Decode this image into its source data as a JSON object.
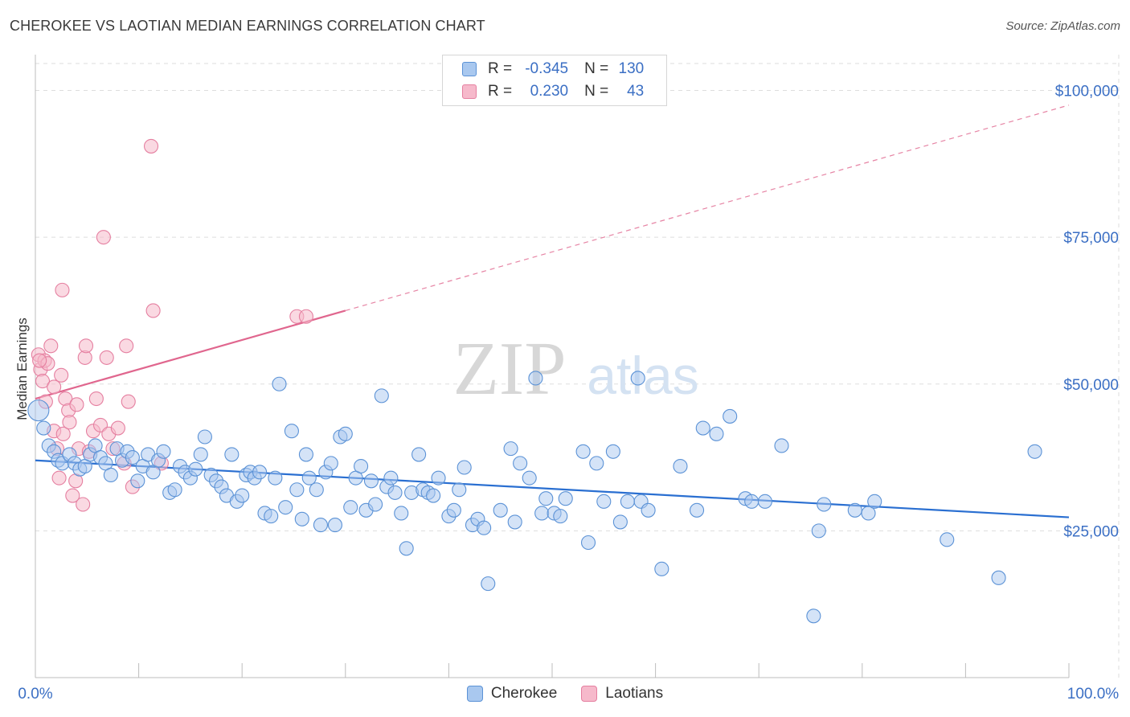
{
  "header": {
    "title": "CHEROKEE VS LAOTIAN MEDIAN EARNINGS CORRELATION CHART",
    "source": "Source: ZipAtlas.com"
  },
  "watermark": {
    "zip": "ZIP",
    "atlas": "atlas"
  },
  "legend": {
    "cherokee": {
      "r_label": "R =",
      "r_value": "-0.345",
      "n_label": "N =",
      "n_value": "130"
    },
    "laotians": {
      "r_label": "R =",
      "r_value": "0.230",
      "n_label": "N =",
      "n_value": "43"
    }
  },
  "bottom_legend": {
    "cherokee": "Cherokee",
    "laotians": "Laotians"
  },
  "colors": {
    "cherokee_fill": "#a9c8ef",
    "cherokee_stroke": "#5b92d6",
    "cherokee_line": "#2a6fd1",
    "laotians_fill": "#f6b9cb",
    "laotians_stroke": "#e57fa0",
    "laotians_line": "#e0668e",
    "tick_label": "#3b6fc4",
    "grid": "#dddddd"
  },
  "chart_data": {
    "type": "scatter",
    "title": "CHEROKEE VS LAOTIAN MEDIAN EARNINGS CORRELATION CHART",
    "xlabel": "",
    "ylabel": "Median Earnings",
    "xlim": [
      0,
      100
    ],
    "ylim": [
      0,
      105000
    ],
    "x_tick_labels": [
      "0.0%",
      "100.0%"
    ],
    "y_ticks": [
      25000,
      50000,
      75000,
      100000
    ],
    "y_tick_labels": [
      "$25,000",
      "$50,000",
      "$75,000",
      "$100,000"
    ],
    "grid": true,
    "legend_placement": "top-center",
    "series": [
      {
        "name": "Cherokee",
        "trend": {
          "x": [
            0,
            100
          ],
          "y": [
            37000,
            27300
          ]
        },
        "points": [
          [
            0.3,
            45500
          ],
          [
            0.8,
            42500
          ],
          [
            1.3,
            39500
          ],
          [
            1.8,
            38500
          ],
          [
            2.2,
            37000
          ],
          [
            2.6,
            36500
          ],
          [
            3.3,
            38000
          ],
          [
            3.8,
            36500
          ],
          [
            4.3,
            35500
          ],
          [
            4.8,
            36000
          ],
          [
            5.3,
            38000
          ],
          [
            5.8,
            39500
          ],
          [
            6.3,
            37500
          ],
          [
            6.8,
            36500
          ],
          [
            7.3,
            34500
          ],
          [
            7.9,
            39000
          ],
          [
            8.4,
            37000
          ],
          [
            8.9,
            38500
          ],
          [
            9.4,
            37500
          ],
          [
            9.9,
            33500
          ],
          [
            10.4,
            36000
          ],
          [
            10.9,
            38000
          ],
          [
            11.4,
            35000
          ],
          [
            11.9,
            37000
          ],
          [
            12.4,
            38500
          ],
          [
            13.0,
            31500
          ],
          [
            13.5,
            32000
          ],
          [
            14.0,
            36000
          ],
          [
            14.5,
            35000
          ],
          [
            15.0,
            34000
          ],
          [
            15.5,
            35500
          ],
          [
            16.0,
            38000
          ],
          [
            16.4,
            41000
          ],
          [
            17.0,
            34500
          ],
          [
            17.5,
            33500
          ],
          [
            18.0,
            32500
          ],
          [
            18.5,
            31000
          ],
          [
            19.0,
            38000
          ],
          [
            19.5,
            30000
          ],
          [
            20.0,
            31000
          ],
          [
            20.4,
            34500
          ],
          [
            20.8,
            35000
          ],
          [
            21.2,
            34000
          ],
          [
            21.7,
            35000
          ],
          [
            22.2,
            28000
          ],
          [
            22.8,
            27500
          ],
          [
            23.2,
            34000
          ],
          [
            23.6,
            50000
          ],
          [
            24.2,
            29000
          ],
          [
            24.8,
            42000
          ],
          [
            25.3,
            32000
          ],
          [
            25.8,
            27000
          ],
          [
            26.2,
            38000
          ],
          [
            26.5,
            34000
          ],
          [
            27.2,
            32000
          ],
          [
            27.6,
            26000
          ],
          [
            28.1,
            35000
          ],
          [
            28.6,
            36500
          ],
          [
            29.0,
            26000
          ],
          [
            29.5,
            41000
          ],
          [
            30.0,
            41500
          ],
          [
            30.5,
            29000
          ],
          [
            31.0,
            34000
          ],
          [
            31.5,
            36000
          ],
          [
            32.0,
            28500
          ],
          [
            32.5,
            33500
          ],
          [
            32.9,
            29500
          ],
          [
            33.5,
            48000
          ],
          [
            34.0,
            32500
          ],
          [
            34.4,
            34000
          ],
          [
            34.8,
            31500
          ],
          [
            35.4,
            28000
          ],
          [
            35.9,
            22000
          ],
          [
            36.4,
            31500
          ],
          [
            37.1,
            38000
          ],
          [
            37.5,
            32000
          ],
          [
            38.0,
            31500
          ],
          [
            38.5,
            31000
          ],
          [
            39.0,
            34000
          ],
          [
            40.0,
            27500
          ],
          [
            40.5,
            28500
          ],
          [
            41.0,
            32000
          ],
          [
            41.5,
            35800
          ],
          [
            42.3,
            26000
          ],
          [
            42.8,
            27000
          ],
          [
            43.4,
            25500
          ],
          [
            43.8,
            16000
          ],
          [
            45.0,
            28500
          ],
          [
            46.0,
            39000
          ],
          [
            46.4,
            26500
          ],
          [
            46.9,
            36500
          ],
          [
            47.8,
            34000
          ],
          [
            48.4,
            51000
          ],
          [
            49.0,
            28000
          ],
          [
            49.4,
            30500
          ],
          [
            50.2,
            28000
          ],
          [
            50.8,
            27500
          ],
          [
            51.3,
            30500
          ],
          [
            53.0,
            38500
          ],
          [
            53.5,
            23000
          ],
          [
            54.3,
            36500
          ],
          [
            55.0,
            30000
          ],
          [
            55.9,
            38500
          ],
          [
            56.6,
            26500
          ],
          [
            57.3,
            30000
          ],
          [
            58.3,
            51000
          ],
          [
            58.6,
            30000
          ],
          [
            59.3,
            28500
          ],
          [
            60.6,
            18500
          ],
          [
            62.4,
            36000
          ],
          [
            64.0,
            28500
          ],
          [
            64.6,
            42500
          ],
          [
            65.9,
            41500
          ],
          [
            67.2,
            44500
          ],
          [
            68.7,
            30500
          ],
          [
            69.3,
            30000
          ],
          [
            70.6,
            30000
          ],
          [
            72.2,
            39500
          ],
          [
            75.3,
            10500
          ],
          [
            75.8,
            25000
          ],
          [
            76.3,
            29500
          ],
          [
            79.3,
            28500
          ],
          [
            80.6,
            28000
          ],
          [
            81.2,
            30000
          ],
          [
            88.2,
            23500
          ],
          [
            93.2,
            17000
          ],
          [
            96.7,
            38500
          ]
        ]
      },
      {
        "name": "Laotians",
        "trend": {
          "x": [
            0,
            30
          ],
          "y": [
            47500,
            62500
          ]
        },
        "trend_extended": {
          "x": [
            30,
            100
          ],
          "y": [
            62500,
            97500
          ]
        },
        "points": [
          [
            0.3,
            55000
          ],
          [
            0.5,
            52500
          ],
          [
            0.7,
            50500
          ],
          [
            0.9,
            54000
          ],
          [
            1.2,
            53500
          ],
          [
            1.5,
            56500
          ],
          [
            1.8,
            49500
          ],
          [
            1.8,
            42000
          ],
          [
            2.1,
            39000
          ],
          [
            2.3,
            34000
          ],
          [
            2.5,
            51500
          ],
          [
            2.6,
            66000
          ],
          [
            2.7,
            41500
          ],
          [
            2.9,
            47500
          ],
          [
            3.2,
            45500
          ],
          [
            3.3,
            43500
          ],
          [
            3.6,
            31000
          ],
          [
            3.9,
            33500
          ],
          [
            4.0,
            46500
          ],
          [
            4.2,
            39000
          ],
          [
            4.6,
            29500
          ],
          [
            4.8,
            54500
          ],
          [
            4.9,
            56500
          ],
          [
            5.2,
            38500
          ],
          [
            5.6,
            42000
          ],
          [
            5.9,
            47500
          ],
          [
            6.3,
            43000
          ],
          [
            6.6,
            75000
          ],
          [
            6.9,
            54500
          ],
          [
            7.1,
            41500
          ],
          [
            7.5,
            39000
          ],
          [
            8.0,
            42500
          ],
          [
            8.6,
            36500
          ],
          [
            8.8,
            56500
          ],
          [
            9.0,
            47000
          ],
          [
            9.4,
            32500
          ],
          [
            11.2,
            90500
          ],
          [
            11.4,
            62500
          ],
          [
            12.2,
            36500
          ],
          [
            25.3,
            61500
          ],
          [
            26.2,
            61500
          ],
          [
            0.4,
            54000
          ],
          [
            1.0,
            47000
          ]
        ]
      }
    ]
  }
}
